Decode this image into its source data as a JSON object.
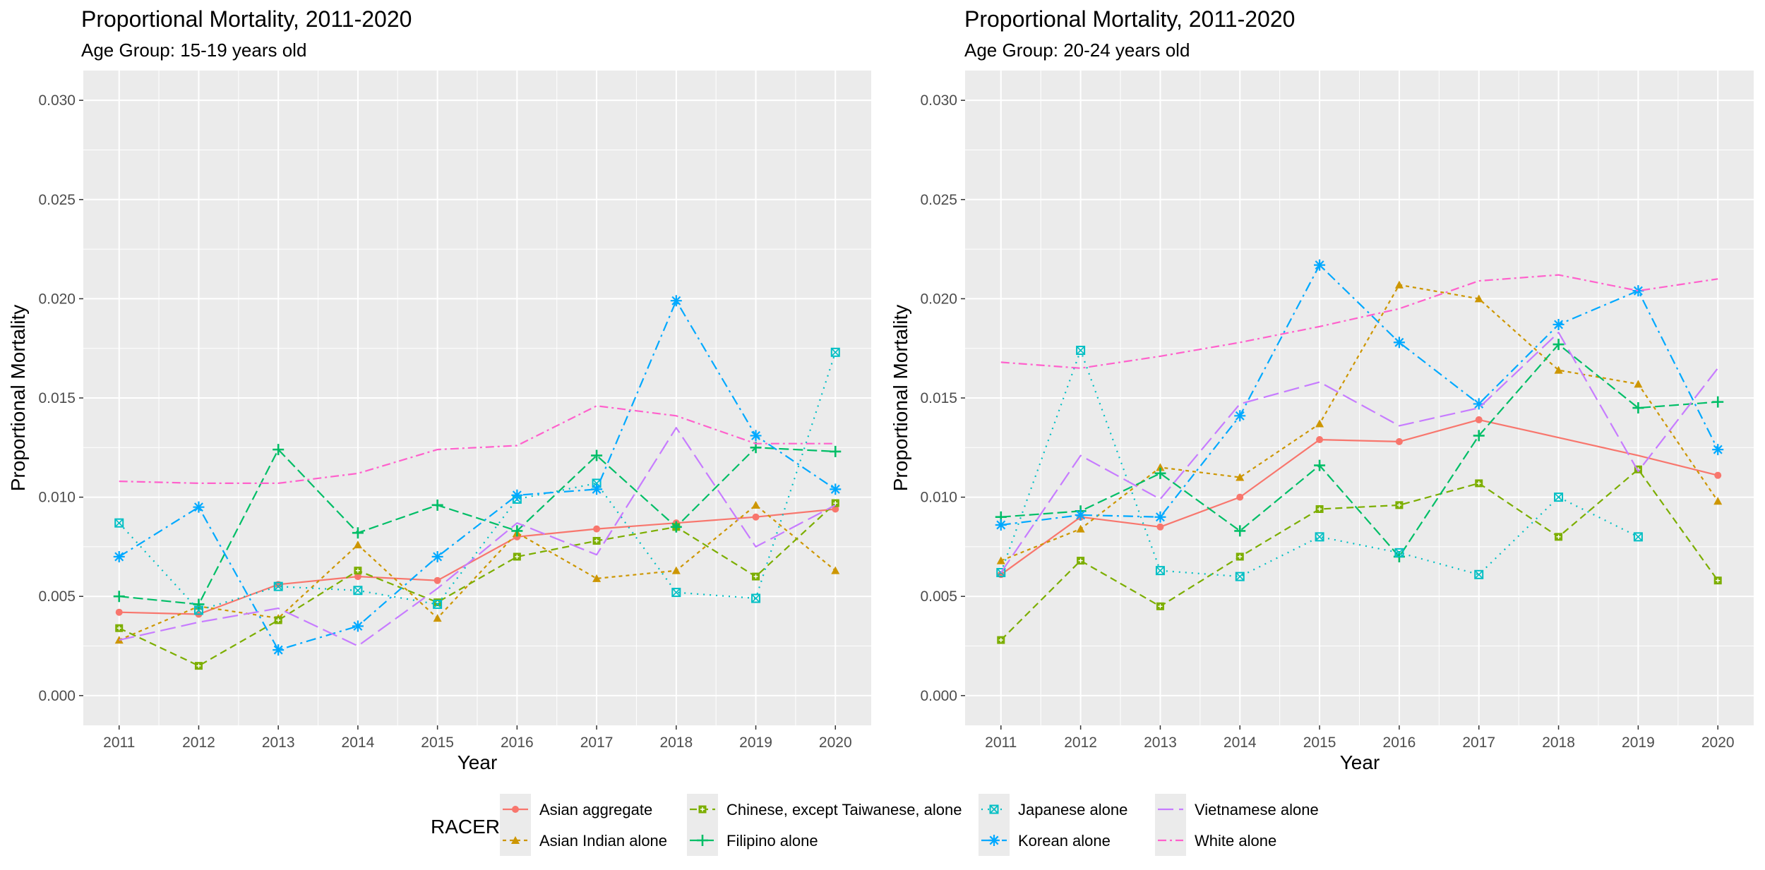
{
  "chart_data": [
    {
      "type": "line",
      "title": "Proportional Mortality, 2011-2020",
      "subtitle": "Age Group: 15-19 years old",
      "xlabel": "Year",
      "ylabel": "Proportional Mortality",
      "x": [
        2011,
        2012,
        2013,
        2014,
        2015,
        2016,
        2017,
        2018,
        2019,
        2020
      ],
      "x_tick_labels": [
        "2011",
        "2012",
        "2013",
        "2014",
        "2015",
        "2016",
        "2017",
        "2018",
        "2019",
        "2020"
      ],
      "y_ticks": [
        0.0,
        0.005,
        0.01,
        0.015,
        0.02,
        0.025,
        0.03
      ],
      "y_tick_labels": [
        "0.000",
        "0.005",
        "0.010",
        "0.015",
        "0.020",
        "0.025",
        "0.030"
      ],
      "ylim": [
        -0.0015,
        0.0315
      ],
      "grid": true,
      "series": [
        {
          "name": "Asian aggregate",
          "values": [
            0.0042,
            0.0041,
            0.0056,
            0.006,
            0.0058,
            0.008,
            0.0084,
            0.0087,
            0.009,
            0.0094
          ],
          "markers": "all"
        },
        {
          "name": "Asian Indian alone",
          "values": [
            0.0028,
            0.0045,
            0.0039,
            0.0076,
            0.0039,
            0.0082,
            0.0059,
            0.0063,
            0.0096,
            0.0063
          ],
          "markers": "all"
        },
        {
          "name": "Chinese, except Taiwanese, alone",
          "values": [
            0.0034,
            0.0015,
            0.0038,
            0.0063,
            0.0047,
            0.007,
            0.0078,
            0.0085,
            0.006,
            0.0097
          ],
          "markers": "all"
        },
        {
          "name": "Filipino alone",
          "values": [
            0.005,
            0.0046,
            0.0124,
            0.0082,
            0.0096,
            0.0083,
            0.0121,
            0.0085,
            0.0125,
            0.0123
          ],
          "markers": "all"
        },
        {
          "name": "Japanese alone",
          "values": [
            0.0087,
            0.0043,
            0.0055,
            0.0053,
            0.0046,
            0.0099,
            0.0107,
            0.0052,
            0.0049,
            0.0173
          ],
          "markers": "all"
        },
        {
          "name": "Korean alone",
          "values": [
            0.007,
            0.0095,
            0.0023,
            0.0035,
            0.007,
            0.0101,
            0.0104,
            0.0199,
            0.0131,
            0.0104
          ],
          "markers": "all"
        },
        {
          "name": "Vietnamese alone",
          "values": [
            0.0028,
            0.0037,
            0.0044,
            0.0025,
            0.0054,
            0.0087,
            0.0071,
            0.0135,
            0.0075,
            0.0096
          ],
          "markers": "none"
        },
        {
          "name": "White alone",
          "values": [
            0.0108,
            0.0107,
            0.0107,
            0.0112,
            0.0124,
            0.0126,
            0.0146,
            0.0141,
            0.0127,
            0.0127
          ],
          "markers": "none"
        }
      ]
    },
    {
      "type": "line",
      "title": "Proportional Mortality, 2011-2020",
      "subtitle": "Age Group: 20-24 years old",
      "xlabel": "Year",
      "ylabel": "Proportional Mortality",
      "x": [
        2011,
        2012,
        2013,
        2014,
        2015,
        2016,
        2017,
        2018,
        2019,
        2020
      ],
      "x_tick_labels": [
        "2011",
        "2012",
        "2013",
        "2014",
        "2015",
        "2016",
        "2017",
        "2018",
        "2019",
        "2020"
      ],
      "y_ticks": [
        0.0,
        0.005,
        0.01,
        0.015,
        0.02,
        0.025,
        0.03
      ],
      "y_tick_labels": [
        "0.000",
        "0.005",
        "0.010",
        "0.015",
        "0.020",
        "0.025",
        "0.030"
      ],
      "ylim": [
        -0.0015,
        0.0315
      ],
      "grid": true,
      "series": [
        {
          "name": "Asian aggregate",
          "values": [
            0.0061,
            0.009,
            0.0085,
            0.01,
            0.0129,
            0.0128,
            0.0139,
            0.013,
            0.0121,
            0.0111
          ],
          "markers": [
            0,
            1,
            2,
            3,
            4,
            5,
            6,
            9
          ]
        },
        {
          "name": "Asian Indian alone",
          "values": [
            0.0068,
            0.0084,
            0.0115,
            0.011,
            0.0137,
            0.0207,
            0.02,
            0.0164,
            0.0157,
            0.0098
          ],
          "markers": "all"
        },
        {
          "name": "Chinese, except Taiwanese, alone",
          "values": [
            0.0028,
            0.0068,
            0.0045,
            0.007,
            0.0094,
            0.0096,
            0.0107,
            0.008,
            0.0114,
            0.0058
          ],
          "markers": "all"
        },
        {
          "name": "Filipino alone",
          "values": [
            0.009,
            0.0093,
            0.0112,
            0.0083,
            0.0116,
            0.007,
            0.0131,
            0.0177,
            0.0145,
            0.0148
          ],
          "markers": "all"
        },
        {
          "name": "Japanese alone",
          "values": [
            0.0062,
            0.0174,
            0.0063,
            0.006,
            0.008,
            0.0072,
            0.0061,
            0.01,
            0.008,
            null
          ],
          "markers": "all"
        },
        {
          "name": "Korean alone",
          "values": [
            0.0086,
            0.0091,
            0.009,
            0.0141,
            0.0217,
            0.0178,
            0.0147,
            0.0187,
            0.0204,
            0.0124
          ],
          "markers": "all"
        },
        {
          "name": "Vietnamese alone",
          "values": [
            0.0062,
            0.0121,
            0.0099,
            0.0147,
            0.0158,
            0.0136,
            0.0145,
            0.0183,
            0.0113,
            0.0165
          ],
          "markers": "none"
        },
        {
          "name": "White alone",
          "values": [
            0.0168,
            0.0165,
            0.0171,
            0.0178,
            0.0186,
            0.0195,
            0.0209,
            0.0212,
            0.0204,
            0.021
          ],
          "markers": "none"
        }
      ]
    }
  ],
  "legend": {
    "title": "RACER",
    "position": "bottom",
    "items": [
      {
        "name": "Asian aggregate",
        "color": "#F8766D",
        "dash": "",
        "shape": "circle"
      },
      {
        "name": "Asian Indian alone",
        "color": "#CD9600",
        "dash": "5,5",
        "shape": "triangle"
      },
      {
        "name": "Chinese, except Taiwanese, alone",
        "color": "#7CAE00",
        "dash": "10,6",
        "shape": "square-plus"
      },
      {
        "name": "Filipino alone",
        "color": "#00BE67",
        "dash": "14,6",
        "shape": "plus"
      },
      {
        "name": "Japanese alone",
        "color": "#00BFC4",
        "dash": "2,7",
        "shape": "square-x"
      },
      {
        "name": "Korean alone",
        "color": "#00A9FF",
        "dash": "14,6,3,6",
        "shape": "asterisk"
      },
      {
        "name": "Vietnamese alone",
        "color": "#C77CFF",
        "dash": "22,8",
        "shape": "none"
      },
      {
        "name": "White alone",
        "color": "#FF61CC",
        "dash": "12,5,3,5",
        "shape": "none"
      }
    ]
  }
}
